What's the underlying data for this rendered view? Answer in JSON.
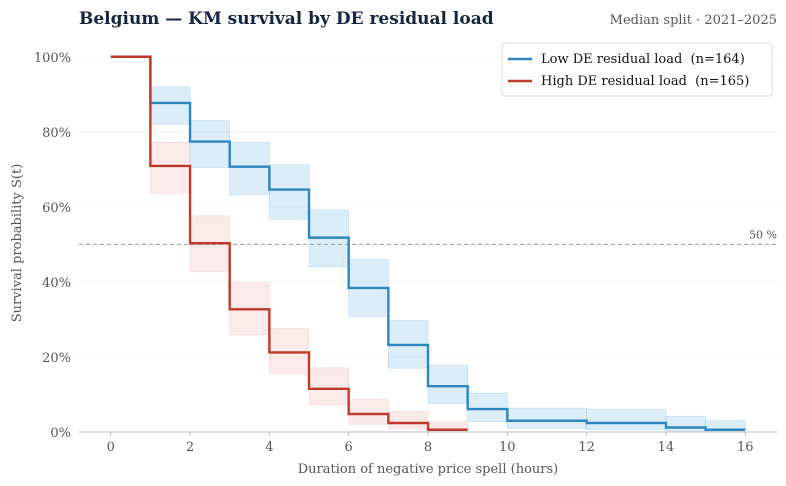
{
  "chart_data": {
    "type": "line",
    "step": true,
    "title": "Belgium — KM survival by DE residual load",
    "subtitle": "Median split · 2021–2025",
    "xlabel": "Duration of negative price spell (hours)",
    "ylabel": "Survival probability  S(t)",
    "xlim": [
      -0.8,
      16.8
    ],
    "ylim": [
      0,
      1.05
    ],
    "xticks": [
      0,
      2,
      4,
      6,
      8,
      10,
      12,
      14,
      16
    ],
    "yticks": [
      0,
      0.2,
      0.4,
      0.6,
      0.8,
      1.0
    ],
    "xtick_labels": [
      "0",
      "2",
      "4",
      "6",
      "8",
      "10",
      "12",
      "14",
      "16"
    ],
    "ytick_labels": [
      "0%",
      "20%",
      "40%",
      "60%",
      "80%",
      "100%"
    ],
    "grid": "horizontal",
    "legend_position": "top-right",
    "reference_line": {
      "y": 0.5,
      "label": "50 %"
    },
    "series": [
      {
        "name": "Low DE residual load  (n=164)",
        "color": "#2e86c1",
        "band_color": "#5dade2",
        "x": [
          0,
          1,
          2,
          3,
          4,
          5,
          6,
          7,
          8,
          9,
          10,
          12,
          14,
          15,
          16
        ],
        "y": [
          1.0,
          0.877,
          0.774,
          0.707,
          0.646,
          0.518,
          0.384,
          0.232,
          0.122,
          0.061,
          0.03,
          0.024,
          0.012,
          0.006,
          0.006
        ],
        "lower": [
          1.0,
          0.82,
          0.705,
          0.632,
          0.567,
          0.44,
          0.308,
          0.17,
          0.076,
          0.028,
          0.01,
          0.006,
          0.0,
          0.0,
          0.0
        ],
        "upper": [
          1.0,
          0.92,
          0.83,
          0.772,
          0.712,
          0.592,
          0.46,
          0.297,
          0.178,
          0.103,
          0.064,
          0.06,
          0.042,
          0.03,
          0.03
        ]
      },
      {
        "name": "High DE residual load  (n=165)",
        "color": "#c0392b",
        "band_color": "#e6a5a0",
        "x": [
          0,
          1,
          2,
          3,
          4,
          5,
          6,
          7,
          8,
          9
        ],
        "y": [
          1.0,
          0.709,
          0.503,
          0.327,
          0.212,
          0.115,
          0.048,
          0.024,
          0.006,
          0.006
        ],
        "lower": [
          1.0,
          0.636,
          0.427,
          0.259,
          0.155,
          0.072,
          0.021,
          0.008,
          0.0,
          0.0
        ],
        "upper": [
          1.0,
          0.772,
          0.576,
          0.398,
          0.276,
          0.171,
          0.088,
          0.055,
          0.028,
          0.028
        ]
      }
    ]
  }
}
